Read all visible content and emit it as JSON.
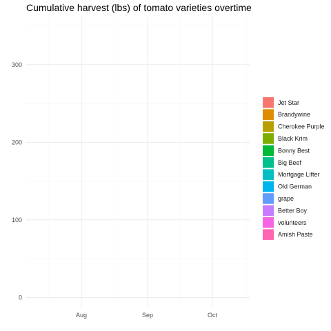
{
  "chart_data": {
    "type": "area",
    "title": "Cumulative harvest (lbs) of tomato varieties overtime",
    "xlabel": "",
    "ylabel": "",
    "x_ticks": [
      "Aug",
      "Sep",
      "Oct"
    ],
    "y_ticks": [
      0,
      100,
      200,
      300
    ],
    "ylim": [
      -12,
      362
    ],
    "grid": true,
    "legend_position": "right",
    "series": [
      {
        "name": "Jet Star",
        "color": "#F8766D",
        "values": []
      },
      {
        "name": "Brandywine",
        "color": "#DE8C00",
        "values": []
      },
      {
        "name": "Cherokee Purple",
        "color": "#B79F00",
        "values": []
      },
      {
        "name": "Black Krim",
        "color": "#7CAE00",
        "values": []
      },
      {
        "name": "Bonny Best",
        "color": "#00BA38",
        "values": []
      },
      {
        "name": "Big Beef",
        "color": "#00C08B",
        "values": []
      },
      {
        "name": "Mortgage Lifter",
        "color": "#00BFC4",
        "values": []
      },
      {
        "name": "Old German",
        "color": "#00B4F0",
        "values": []
      },
      {
        "name": "grape",
        "color": "#619CFF",
        "values": []
      },
      {
        "name": "Better Boy",
        "color": "#C77CFF",
        "values": []
      },
      {
        "name": "volunteers",
        "color": "#F564E3",
        "values": []
      },
      {
        "name": "Amish Paste",
        "color": "#FF64B0",
        "values": []
      }
    ]
  }
}
